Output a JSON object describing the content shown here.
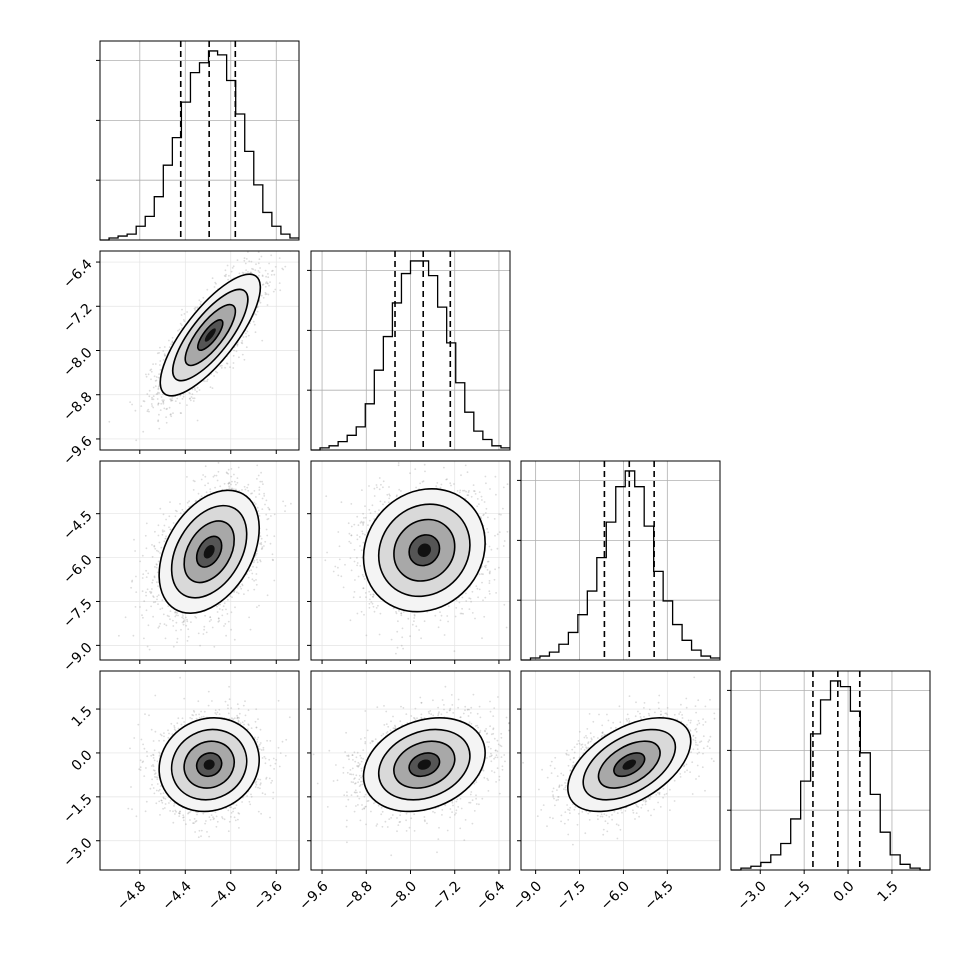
{
  "chart_data": {
    "type": "corner",
    "grid": true,
    "n_params": 4,
    "parameters": [
      {
        "range": [
          -5.15,
          -3.4
        ],
        "ticks": [
          -4.8,
          -4.4,
          -4.0,
          -3.6
        ],
        "tick_labels": [
          "−4.8",
          "−4.4",
          "−4.0",
          "−3.6"
        ],
        "quantiles": [
          -4.44,
          -4.19,
          -3.96
        ],
        "hist_bins": [
          0,
          1,
          2,
          3,
          7,
          12,
          22,
          38,
          52,
          70,
          85,
          90,
          96,
          94,
          81,
          64,
          45,
          28,
          14,
          7,
          3,
          1
        ]
      },
      {
        "range": [
          -9.8,
          -6.2
        ],
        "ticks": [
          -9.6,
          -8.8,
          -8.0,
          -7.2,
          -6.4
        ],
        "tick_labels": [
          "−9.6",
          "−8.8",
          "−8.0",
          "−7.2",
          "−6.4"
        ],
        "quantiles": [
          -8.28,
          -7.77,
          -7.28
        ],
        "hist_bins": [
          0,
          1,
          2,
          4,
          7,
          11,
          22,
          38,
          54,
          70,
          84,
          90,
          90,
          83,
          68,
          51,
          32,
          18,
          9,
          5,
          2,
          1
        ]
      },
      {
        "range": [
          -9.5,
          -2.7
        ],
        "ticks": [
          -9.0,
          -7.5,
          -6.0,
          -4.5
        ],
        "tick_labels": [
          "−9.0",
          "−7.5",
          "−6.0",
          "−4.5"
        ],
        "quantiles": [
          -6.65,
          -5.8,
          -4.95
        ],
        "hist_bins": [
          0,
          1,
          2,
          4,
          8,
          14,
          23,
          35,
          52,
          70,
          88,
          96,
          88,
          68,
          45,
          30,
          18,
          10,
          5,
          2,
          1
        ]
      },
      {
        "range": [
          -4.0,
          2.8
        ],
        "ticks": [
          -3.0,
          -1.5,
          0.0,
          1.5
        ],
        "tick_labels": [
          "−3.0",
          "−1.5",
          "0.0",
          "1.5"
        ],
        "quantiles": [
          -1.2,
          -0.35,
          0.4
        ],
        "hist_bins": [
          0,
          1,
          2,
          4,
          8,
          14,
          27,
          47,
          72,
          90,
          100,
          97,
          84,
          62,
          40,
          20,
          8,
          3,
          1,
          0
        ]
      }
    ],
    "pairs": [
      {
        "row": 1,
        "col": 0,
        "mean": [
          -4.18,
          -7.72
        ],
        "sd": [
          0.22,
          0.55
        ],
        "corr": 0.78
      },
      {
        "row": 2,
        "col": 0,
        "mean": [
          -4.19,
          -5.8
        ],
        "sd": [
          0.22,
          1.05
        ],
        "corr": 0.38
      },
      {
        "row": 2,
        "col": 1,
        "mean": [
          -7.75,
          -5.75
        ],
        "sd": [
          0.55,
          1.05
        ],
        "corr": 0.12
      },
      {
        "row": 3,
        "col": 0,
        "mean": [
          -4.19,
          -0.4
        ],
        "sd": [
          0.22,
          0.8
        ],
        "corr": 0.1
      },
      {
        "row": 3,
        "col": 1,
        "mean": [
          -7.75,
          -0.4
        ],
        "sd": [
          0.55,
          0.8
        ],
        "corr": 0.25
      },
      {
        "row": 3,
        "col": 2,
        "mean": [
          -5.8,
          -0.4
        ],
        "sd": [
          1.05,
          0.8
        ],
        "corr": 0.5
      }
    ],
    "contour_levels_sigma": [
      0.5,
      1.0,
      1.5,
      2.0
    ],
    "colors": {
      "line": "#000000",
      "grid": "#b0b0b0",
      "scatter": "#9a9a9a"
    }
  }
}
